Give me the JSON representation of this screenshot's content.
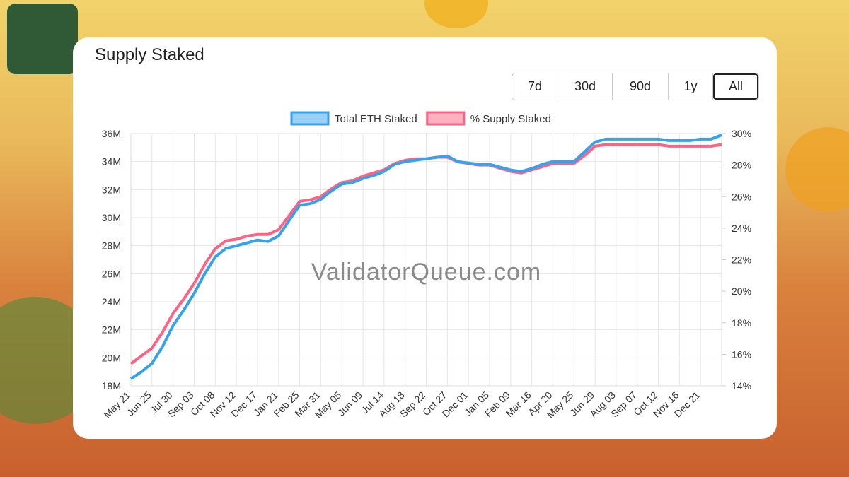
{
  "ranges": [
    "7d",
    "30d",
    "90d",
    "1y",
    "All"
  ],
  "chart_data": {
    "type": "line",
    "title": "Supply Staked",
    "watermark": "ValidatorQueue.com",
    "categories": [
      "May 21",
      null,
      "Jun 25",
      null,
      "Jul 30",
      null,
      "Sep 03",
      null,
      "Oct 08",
      null,
      "Nov 12",
      null,
      "Dec 17",
      null,
      "Jan 21",
      null,
      "Feb 25",
      null,
      "Mar 31",
      null,
      "May 05",
      null,
      "Jun 09",
      null,
      "Jul 14",
      null,
      "Aug 18",
      null,
      "Sep 22",
      null,
      "Oct 27",
      null,
      "Dec 01",
      null,
      "Jan 05",
      null,
      "Feb 09",
      null,
      "Mar 16",
      null,
      "Apr 20",
      null,
      "May 25",
      null,
      "Jun 29",
      null,
      "Aug 03",
      null,
      "Sep 07",
      null,
      "Oct 12",
      null,
      "Nov 16",
      null,
      "Dec 21",
      null,
      null
    ],
    "series": [
      {
        "name": "Total ETH Staked",
        "color": "#36a2eb",
        "axis": "y",
        "values": [
          18.5,
          19.0,
          19.6,
          20.8,
          22.3,
          23.4,
          24.6,
          26.0,
          27.2,
          27.8,
          28.0,
          28.2,
          28.4,
          28.3,
          28.7,
          29.8,
          30.9,
          31.0,
          31.3,
          31.9,
          32.4,
          32.5,
          32.8,
          33.0,
          33.3,
          33.8,
          34.0,
          34.1,
          34.2,
          34.3,
          34.4,
          34.0,
          33.9,
          33.8,
          33.8,
          33.6,
          33.4,
          33.3,
          33.5,
          33.8,
          34.0,
          34.0,
          34.0,
          34.7,
          35.4,
          35.6,
          35.6,
          35.6,
          35.6,
          35.6,
          35.6,
          35.5,
          35.5,
          35.5,
          35.6,
          35.6,
          35.9
        ]
      },
      {
        "name": "% Supply Staked",
        "color": "#ff6384",
        "axis": "y2",
        "values": [
          15.4,
          15.9,
          16.4,
          17.4,
          18.6,
          19.5,
          20.5,
          21.7,
          22.7,
          23.2,
          23.3,
          23.5,
          23.6,
          23.6,
          23.9,
          24.8,
          25.7,
          25.8,
          26.0,
          26.5,
          26.9,
          27.0,
          27.3,
          27.5,
          27.7,
          28.1,
          28.3,
          28.4,
          28.4,
          28.5,
          28.5,
          28.2,
          28.1,
          28.0,
          28.0,
          27.8,
          27.6,
          27.5,
          27.7,
          27.9,
          28.1,
          28.1,
          28.1,
          28.6,
          29.2,
          29.3,
          29.3,
          29.3,
          29.3,
          29.3,
          29.3,
          29.2,
          29.2,
          29.2,
          29.2,
          29.2,
          29.3
        ]
      }
    ],
    "ylim": [
      18,
      36
    ],
    "yticks": [
      {
        "value": 18,
        "label": "18M"
      },
      {
        "value": 20,
        "label": "20M"
      },
      {
        "value": 22,
        "label": "22M"
      },
      {
        "value": 24,
        "label": "24M"
      },
      {
        "value": 26,
        "label": "26M"
      },
      {
        "value": 28,
        "label": "28M"
      },
      {
        "value": 30,
        "label": "30M"
      },
      {
        "value": 32,
        "label": "32M"
      },
      {
        "value": 34,
        "label": "34M"
      },
      {
        "value": 36,
        "label": "36M"
      }
    ],
    "y2lim": [
      14,
      30
    ],
    "y2ticks": [
      {
        "value": 14,
        "label": "14%"
      },
      {
        "value": 16,
        "label": "16%"
      },
      {
        "value": 18,
        "label": "18%"
      },
      {
        "value": 20,
        "label": "20%"
      },
      {
        "value": 22,
        "label": "22%"
      },
      {
        "value": 24,
        "label": "24%"
      },
      {
        "value": 26,
        "label": "26%"
      },
      {
        "value": 28,
        "label": "28%"
      },
      {
        "value": 30,
        "label": "30%"
      }
    ],
    "grid": true,
    "legend": "top"
  }
}
